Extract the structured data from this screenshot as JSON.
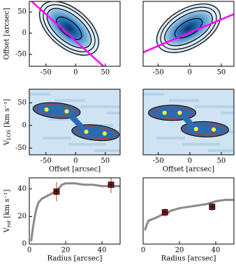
{
  "chart_data": [
    {
      "type": "map",
      "ylabel": "Offset [arcsec]",
      "xlim": [
        -78,
        75
      ],
      "ylim": [
        -78,
        75
      ],
      "xticks": [
        -50,
        0,
        50
      ],
      "yticks": [
        -50,
        0,
        50
      ],
      "line": {
        "color": "#ff00ff",
        "x": [
          -74,
          47
        ],
        "y": [
          75,
          -78
        ]
      }
    },
    {
      "type": "map",
      "xlim": [
        -74,
        70
      ],
      "ylim": [
        -78,
        75
      ],
      "xticks": [
        -50,
        0,
        50
      ],
      "line": {
        "color": "#ff00ff",
        "x": [
          -74,
          70
        ],
        "y": [
          -45,
          45
        ]
      }
    },
    {
      "type": "pv",
      "ylabel": {
        "main": "V",
        "sub": "LOS",
        "unit": " [km s⁻¹]"
      },
      "xlabel": "Offset [arcsec]",
      "xlim": [
        -78,
        75
      ],
      "ylim": [
        -65,
        80
      ],
      "xticks": [
        -50,
        0,
        50
      ],
      "yticks": [
        -50,
        0,
        50
      ],
      "points": {
        "color": "#ffff33",
        "x": [
          -49,
          -15,
          18,
          49
        ],
        "y": [
          35,
          31,
          -14,
          -18
        ]
      }
    },
    {
      "type": "pv",
      "xlabel": "Offset [arcsec]",
      "xlim": [
        -74,
        70
      ],
      "ylim": [
        -65,
        80
      ],
      "xticks": [
        -50,
        0,
        50
      ],
      "points": {
        "color": "#ffff33",
        "x": [
          -40,
          -16,
          10,
          38
        ],
        "y": [
          28,
          28,
          -8,
          -9
        ]
      }
    },
    {
      "type": "rotation",
      "ylabel": {
        "main": "V",
        "sub": "rot",
        "unit": " [km s⁻¹]"
      },
      "xlabel": "Radius [arcsec]",
      "xlim": [
        0,
        50
      ],
      "ylim": [
        0,
        48
      ],
      "xticks": [
        0,
        20,
        40
      ],
      "yticks": [
        0,
        20,
        40
      ],
      "curve": {
        "color": "#888888",
        "x": [
          1,
          2,
          3,
          4,
          5,
          7,
          10,
          13,
          16,
          18,
          20,
          25,
          30,
          35,
          40,
          45,
          50
        ],
        "values": [
          2,
          12,
          20,
          26,
          30,
          33,
          35,
          37,
          40,
          43,
          44,
          44,
          43,
          43,
          42,
          42,
          42
        ]
      },
      "points": {
        "color": "#8b1a1a",
        "x": [
          15,
          45
        ],
        "values": [
          38,
          43
        ],
        "errors": [
          7,
          6
        ]
      }
    },
    {
      "type": "rotation",
      "xlabel": "Radius [arcsec]",
      "xlim": [
        0,
        50
      ],
      "ylim": [
        0,
        48
      ],
      "xticks": [
        0,
        20,
        40
      ],
      "curve": {
        "color": "#888888",
        "x": [
          1,
          2,
          3,
          5,
          7,
          10,
          13,
          15,
          20,
          25,
          30,
          35,
          40,
          45,
          50
        ],
        "values": [
          10,
          14,
          17,
          18,
          19,
          21,
          22,
          24,
          26,
          27,
          28,
          29,
          31,
          32,
          32
        ]
      },
      "points": {
        "color": "#8b1a1a",
        "x": [
          12,
          38
        ],
        "values": [
          23,
          27
        ],
        "errors": [
          3,
          3
        ]
      }
    }
  ]
}
